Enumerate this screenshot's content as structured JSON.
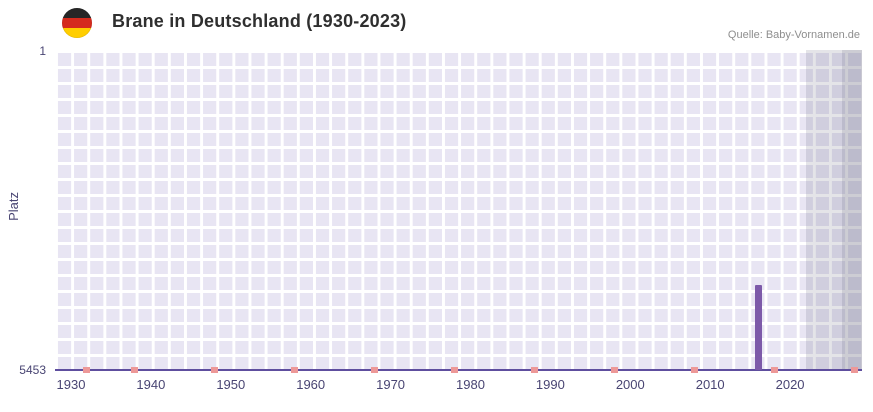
{
  "header": {
    "title": "Brane in Deutschland (1930-2023)",
    "source": "Quelle: Baby-Vornamen.de",
    "flag_colors": {
      "black": "#262626",
      "red": "#d52b1e",
      "gold": "#ffce00"
    }
  },
  "chart_data": {
    "type": "bar",
    "title": "Brane in Deutschland (1930-2023)",
    "source": "Quelle: Baby-Vornamen.de",
    "ylabel": "Platz",
    "y_axis": {
      "top_label": "1",
      "bottom_label": "5453",
      "min": 1,
      "max": 5453,
      "inverted": true
    },
    "x_axis": {
      "ticks": [
        1930,
        1940,
        1950,
        1960,
        1970,
        1980,
        1990,
        2000,
        2010,
        2020
      ],
      "range": [
        1928,
        2029
      ]
    },
    "bars": [
      {
        "year": 2016,
        "rank": 4000
      }
    ],
    "baseline_marker_years": [
      1932,
      1938,
      1948,
      1958,
      1968,
      1978,
      1988,
      1998,
      2008,
      2018,
      2028
    ],
    "highlight_band": {
      "start": 2022,
      "end": 2029
    },
    "highlight_band_darker": {
      "start": 2026.5,
      "end": 2029
    },
    "grid": true,
    "legend": false,
    "colors": {
      "bar": "#7d5aa9",
      "baseline_marker": "#ed9898",
      "plot_background": "#e8e5f3",
      "grid_line": "#ffffff",
      "band_overlay": "rgba(90,88,110,0.16)",
      "axis_line": "#5e4e9e",
      "tick_text": "#494573",
      "title_text": "#2f2f2f",
      "source_text": "#8e8e8e"
    }
  }
}
